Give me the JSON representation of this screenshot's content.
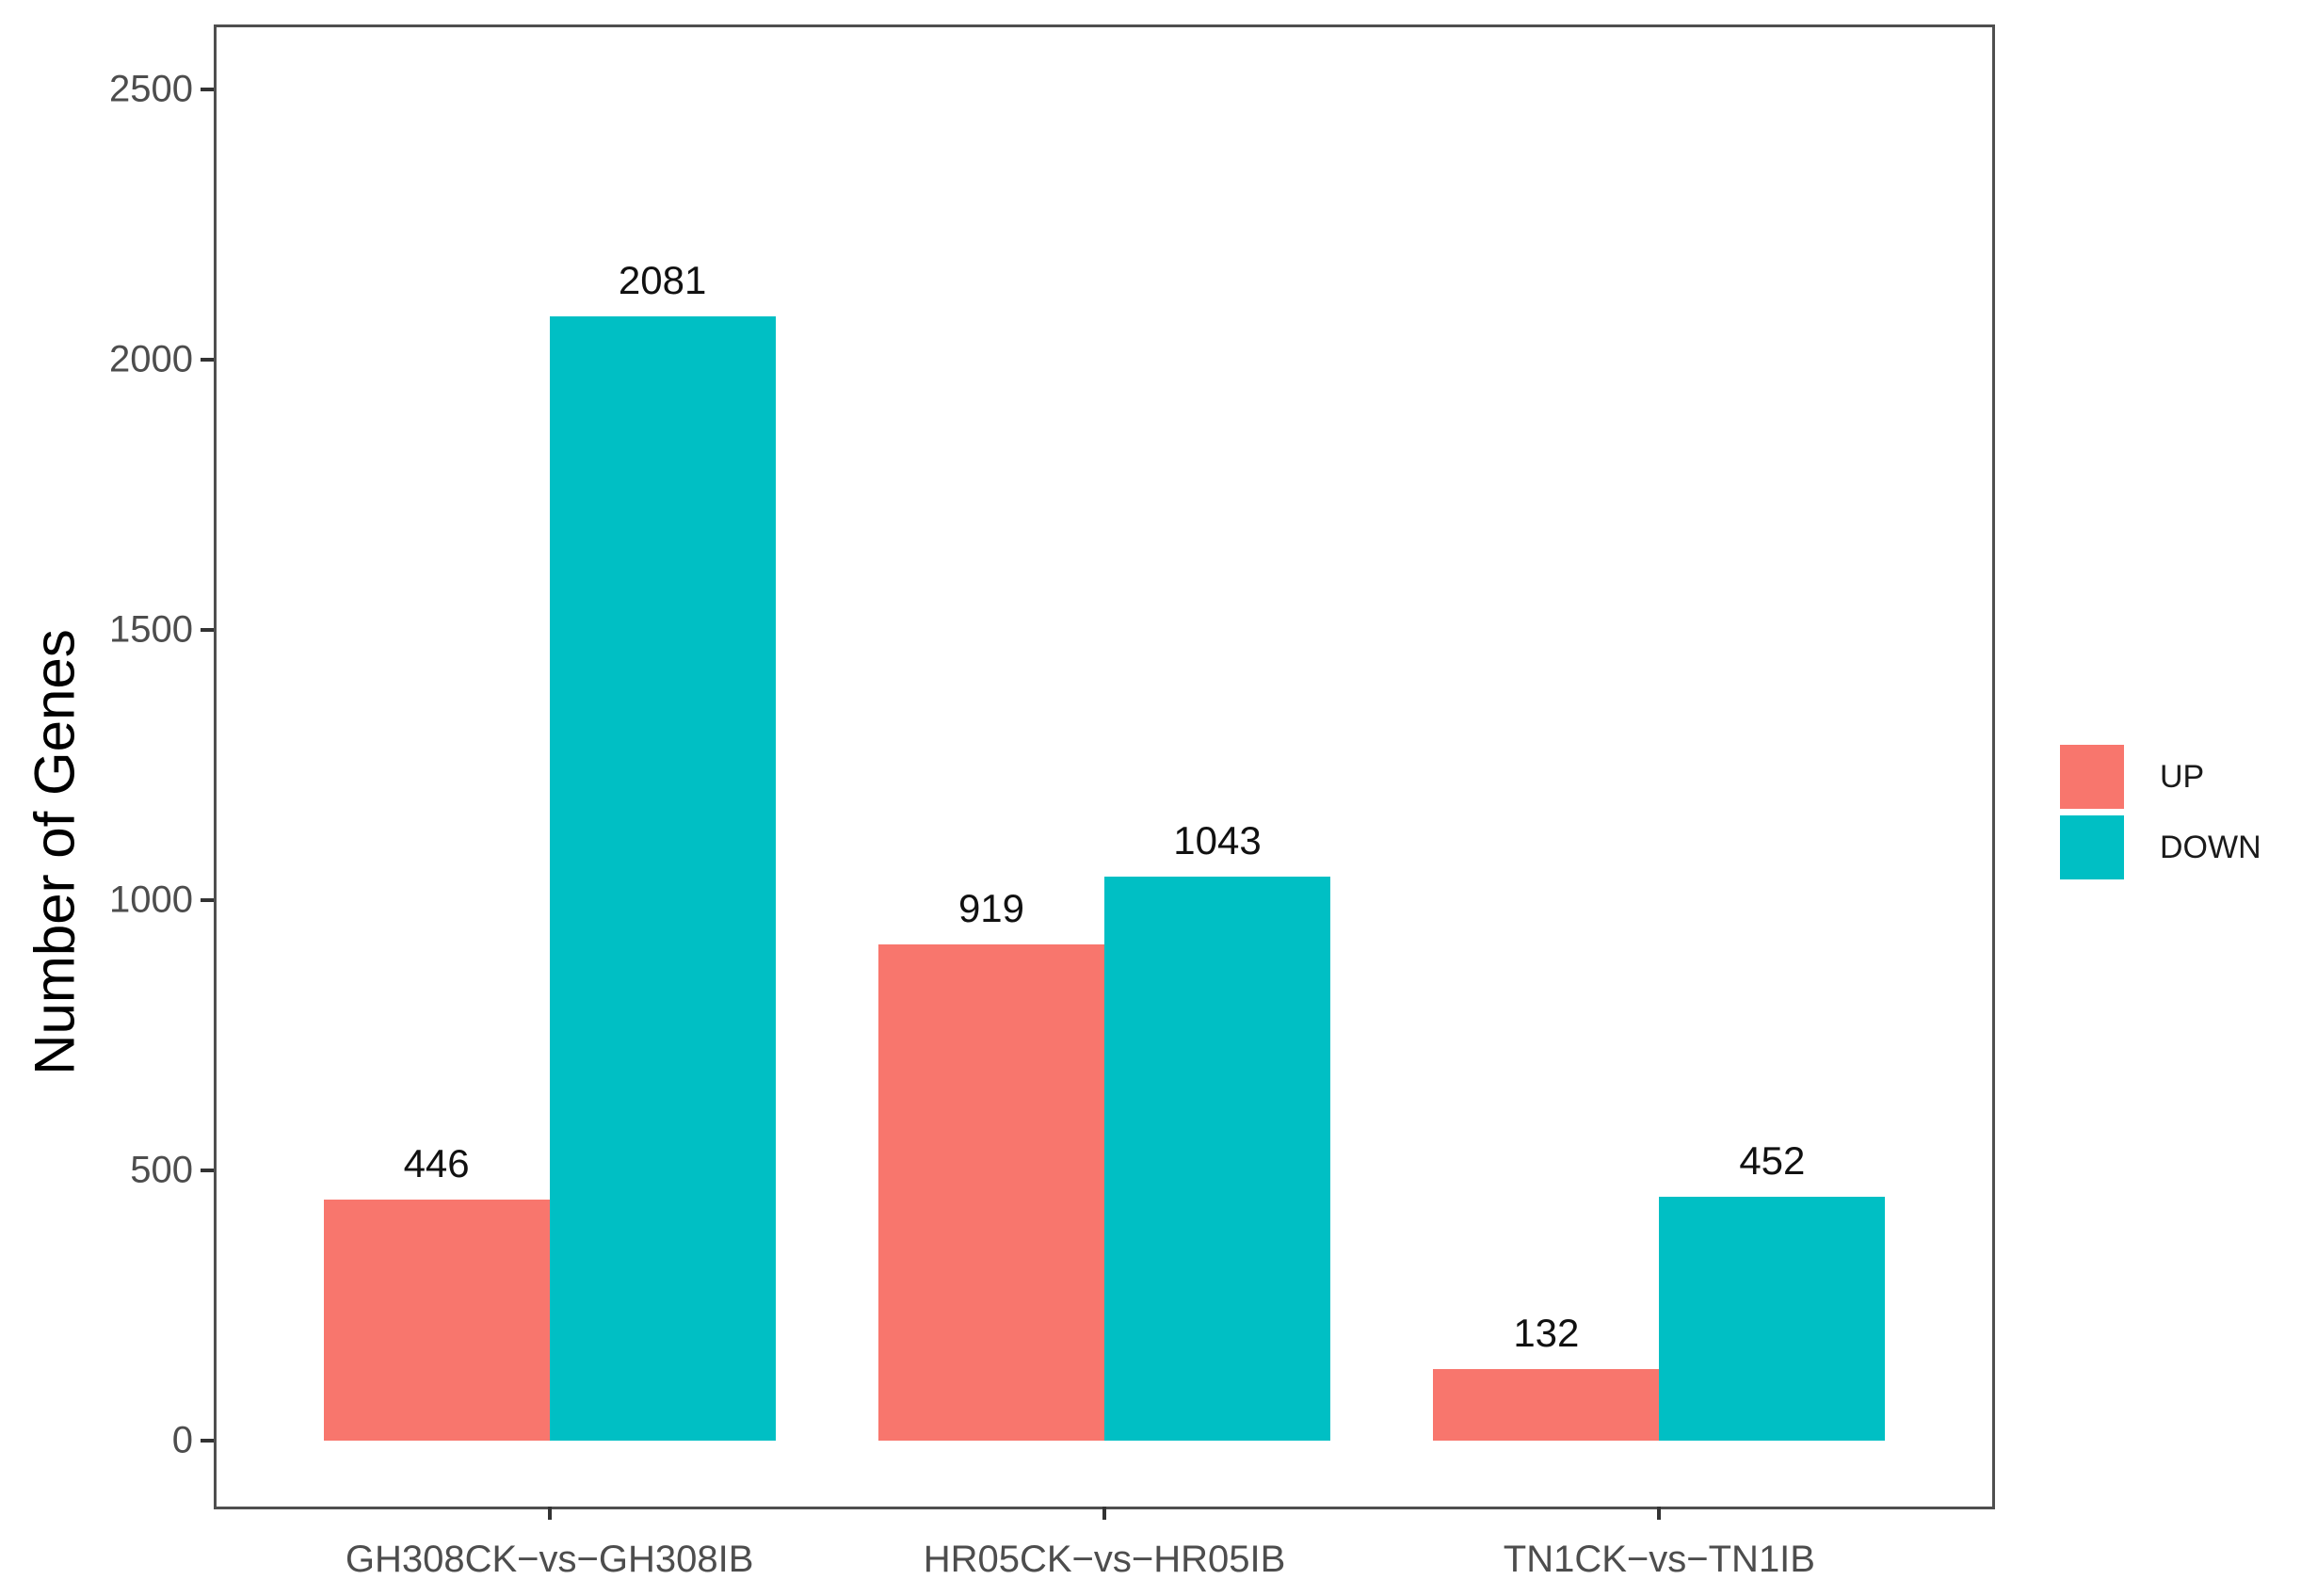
{
  "chart_data": {
    "type": "bar",
    "title": "",
    "xlabel": "",
    "ylabel": "Number of Genes",
    "categories": [
      "GH308CK−vs−GH308IB",
      "HR05CK−vs−HR05IB",
      "TN1CK−vs−TN1IB"
    ],
    "series": [
      {
        "name": "UP",
        "color": "#F8766D",
        "values": [
          446,
          919,
          132
        ]
      },
      {
        "name": "DOWN",
        "color": "#00BFC4",
        "values": [
          2081,
          1043,
          452
        ]
      }
    ],
    "yticks": [
      0,
      500,
      1000,
      1500,
      2000,
      2500
    ],
    "ylim": [
      0,
      2615
    ],
    "grid": false,
    "bar_labels": true,
    "legend_position": "right"
  },
  "colors": {
    "up": "#F8766D",
    "down": "#00BFC4",
    "axis_text": "#4d4d4d",
    "panel_border": "#4f4f4f",
    "value_label": "#111111"
  }
}
